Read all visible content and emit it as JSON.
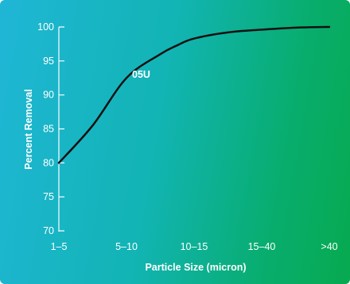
{
  "chart_data": {
    "type": "line",
    "xlabel": "Particle Size (micron)",
    "ylabel": "Percent Removal",
    "categories": [
      "1–5",
      "5–10",
      "10–15",
      "15–40",
      ">40"
    ],
    "y_ticks": [
      "100",
      "95",
      "90",
      "85",
      "80",
      "75",
      "70"
    ],
    "ylim": [
      70,
      100
    ],
    "grid": false,
    "series": [
      {
        "name": "05U",
        "color": "#111111",
        "x": [
          0,
          0.5,
          1.0,
          1.5,
          1.75,
          2.0,
          2.5,
          3.0,
          3.5,
          4.0
        ],
        "y": [
          80,
          85.5,
          92.5,
          96.0,
          97.3,
          98.3,
          99.2,
          99.6,
          99.9,
          100
        ]
      }
    ]
  }
}
